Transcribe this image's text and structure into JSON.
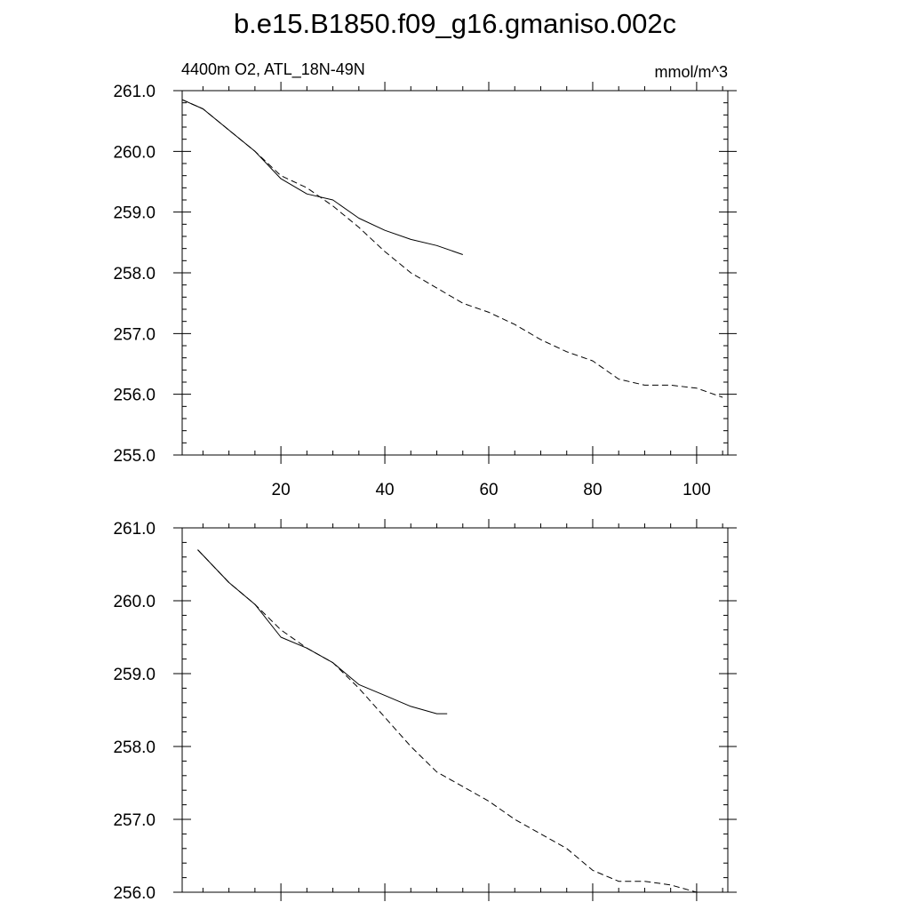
{
  "figure_title": "b.e15.B1850.f09_g16.gmaniso.002c",
  "chart_data": [
    {
      "type": "line",
      "title": "",
      "subtitle_left": "4400m O2, ATL_18N-49N",
      "subtitle_right": "mmol/m^3",
      "xlim": [
        1,
        106
      ],
      "ylim": [
        255.0,
        261.0
      ],
      "xticks": [
        20,
        40,
        60,
        80,
        100
      ],
      "xtick_labels": [
        "20",
        "40",
        "60",
        "80",
        "100"
      ],
      "yticks": [
        255.0,
        256.0,
        257.0,
        258.0,
        259.0,
        260.0,
        261.0
      ],
      "ytick_labels": [
        "255.0",
        "256.0",
        "257.0",
        "258.0",
        "259.0",
        "260.0",
        "261.0"
      ],
      "grid": false,
      "series": [
        {
          "style": "solid",
          "x": [
            1,
            5,
            10,
            15,
            20,
            25,
            30,
            35,
            40,
            45,
            50,
            55
          ],
          "y": [
            260.85,
            260.7,
            260.35,
            260.0,
            259.55,
            259.3,
            259.2,
            258.9,
            258.7,
            258.55,
            258.45,
            258.3
          ]
        },
        {
          "style": "dashed",
          "x": [
            1,
            5,
            10,
            15,
            20,
            25,
            30,
            35,
            40,
            45,
            50,
            55,
            60,
            65,
            70,
            75,
            80,
            85,
            90,
            95,
            100,
            105
          ],
          "y": [
            260.85,
            260.7,
            260.35,
            260.0,
            259.6,
            259.4,
            259.1,
            258.75,
            258.35,
            258.0,
            257.75,
            257.5,
            257.35,
            257.15,
            256.9,
            256.7,
            256.55,
            256.25,
            256.15,
            256.15,
            256.1,
            255.95
          ]
        }
      ]
    },
    {
      "type": "line",
      "title": "",
      "xlim": [
        1,
        106
      ],
      "ylim": [
        256.0,
        261.0
      ],
      "xticks": [
        20,
        40,
        60,
        80,
        100
      ],
      "xtick_labels": [],
      "yticks": [
        256.0,
        257.0,
        258.0,
        259.0,
        260.0,
        261.0
      ],
      "ytick_labels": [
        "256.0",
        "257.0",
        "258.0",
        "259.0",
        "260.0",
        "261.0"
      ],
      "grid": false,
      "series": [
        {
          "style": "solid",
          "x": [
            4,
            10,
            15,
            20,
            25,
            30,
            35,
            40,
            45,
            50,
            52
          ],
          "y": [
            260.7,
            260.25,
            259.95,
            259.5,
            259.35,
            259.15,
            258.85,
            258.7,
            258.55,
            258.45,
            258.45
          ]
        },
        {
          "style": "dashed",
          "x": [
            4,
            10,
            15,
            20,
            25,
            30,
            35,
            40,
            45,
            50,
            55,
            60,
            65,
            70,
            75,
            80,
            85,
            90,
            95,
            100,
            103
          ],
          "y": [
            260.7,
            260.25,
            259.95,
            259.6,
            259.35,
            259.15,
            258.8,
            258.4,
            258.0,
            257.65,
            257.45,
            257.25,
            257.0,
            256.8,
            256.6,
            256.3,
            256.15,
            256.15,
            256.1,
            256.0,
            256.0
          ]
        }
      ]
    }
  ]
}
